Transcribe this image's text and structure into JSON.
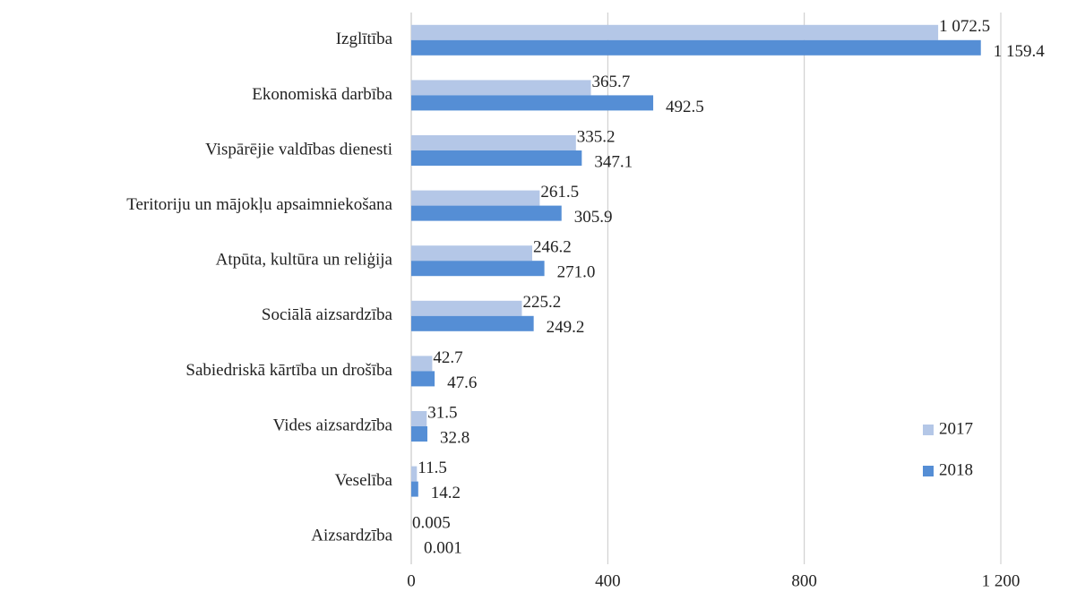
{
  "chart_data": {
    "type": "hbar",
    "categories": [
      "Izglītība",
      "Ekonomiskā darbība",
      "Vispārējie valdības dienesti",
      "Teritoriju un mājokļu apsaimniekošana",
      "Atpūta, kultūra un reliģija",
      "Sociālā aizsardzība",
      "Sabiedriskā kārtība un drošība",
      "Vides aizsardzība",
      "Veselība",
      "Aizsardzība"
    ],
    "series": [
      {
        "name": "2017",
        "color": "#b4c7e7",
        "values": [
          1072.5,
          365.7,
          335.2,
          261.5,
          246.2,
          225.2,
          42.7,
          31.5,
          11.5,
          0.005
        ],
        "value_labels": [
          "1 072.5",
          "365.7",
          "335.2",
          "261.5",
          "246.2",
          "225.2",
          "42.7",
          "31.5",
          "11.5",
          "0.005"
        ]
      },
      {
        "name": "2018",
        "color": "#558ed5",
        "values": [
          1159.4,
          492.5,
          347.1,
          305.9,
          271.0,
          249.2,
          47.6,
          32.8,
          14.2,
          0.001
        ],
        "value_labels": [
          "1 159.4",
          "492.5",
          "347.1",
          "305.9",
          "271.0",
          "249.2",
          "47.6",
          "32.8",
          "14.2",
          "0.001"
        ]
      }
    ],
    "xlim": [
      0,
      1200
    ],
    "xticks": [
      0,
      400,
      800,
      {
        "value": 1200,
        "label": "1 200"
      }
    ],
    "grid": true,
    "legend": "lower right"
  }
}
